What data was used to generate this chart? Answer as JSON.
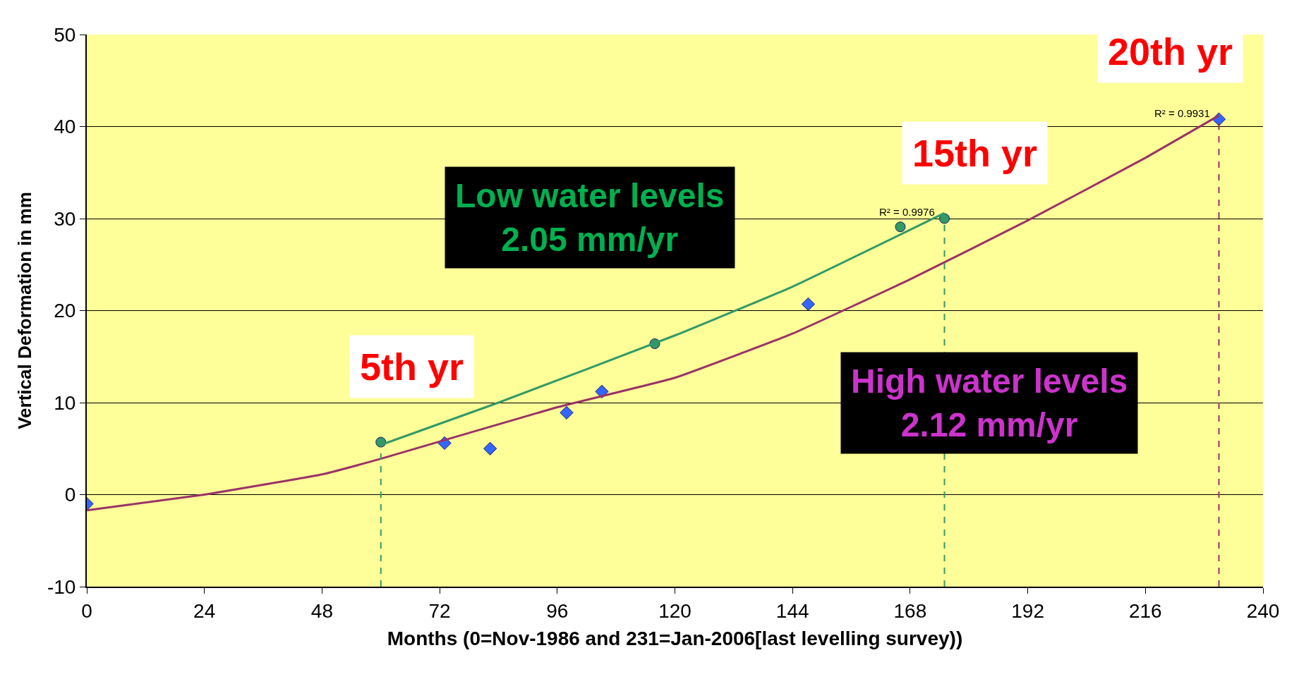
{
  "chart_data": {
    "type": "scatter",
    "xlabel": "Months (0=Nov-1986 and 231=Jan-2006[last levelling survey))",
    "ylabel": "Vertical Deformation in mm",
    "xlim": [
      0,
      240
    ],
    "xticks": [
      0,
      24,
      48,
      72,
      96,
      120,
      144,
      168,
      192,
      216,
      240
    ],
    "ylim": [
      -10,
      50
    ],
    "yticks": [
      -10,
      0,
      10,
      20,
      30,
      40,
      50
    ],
    "grid": "y",
    "series": [
      {
        "type": "line",
        "color": "#993366",
        "marker": "none",
        "line_style": "solid",
        "x": [
          0,
          24,
          48,
          60,
          96,
          120,
          144,
          168,
          192,
          216,
          231
        ],
        "values": [
          -1.7,
          0,
          2.2,
          3.9,
          9.5,
          12.7,
          17.5,
          23.4,
          29.8,
          36.6,
          41.2
        ]
      },
      {
        "type": "line",
        "color": "#339966",
        "marker": "none",
        "line_style": "solid",
        "x": [
          60,
          84,
          120,
          144,
          175
        ],
        "values": [
          5.4,
          10.0,
          17.3,
          22.6,
          30.6
        ]
      },
      {
        "type": "line",
        "color": "#339966",
        "marker": "none",
        "line_style": "dashed",
        "x": [
          60,
          60
        ],
        "values": [
          -10,
          5.7
        ]
      },
      {
        "type": "line",
        "color": "#339966",
        "marker": "none",
        "line_style": "dashed",
        "x": [
          175,
          175
        ],
        "values": [
          -10,
          30.0
        ]
      },
      {
        "type": "line",
        "color": "#993366",
        "marker": "none",
        "line_style": "dashed",
        "x": [
          231,
          231
        ],
        "values": [
          -10,
          40.8
        ]
      },
      {
        "color": "#3366ff",
        "marker": "diamond",
        "x": [
          0,
          73,
          82.3,
          97.9,
          105.1,
          147.2,
          231
        ],
        "values": [
          -1.0,
          5.6,
          5.0,
          8.9,
          11.2,
          20.7,
          40.8
        ]
      },
      {
        "color": "#339966",
        "marker": "circle",
        "x": [
          60,
          115.9,
          166,
          175
        ],
        "values": [
          5.7,
          16.4,
          29.1,
          30.0
        ]
      }
    ],
    "annotations": [
      "Low water levels\n2.05 mm/yr",
      "High water levels\n2.12 mm/yr",
      "5th yr",
      "15th yr",
      "20th yr",
      "R² = 0.9976",
      "R² = 0.9931"
    ]
  }
}
